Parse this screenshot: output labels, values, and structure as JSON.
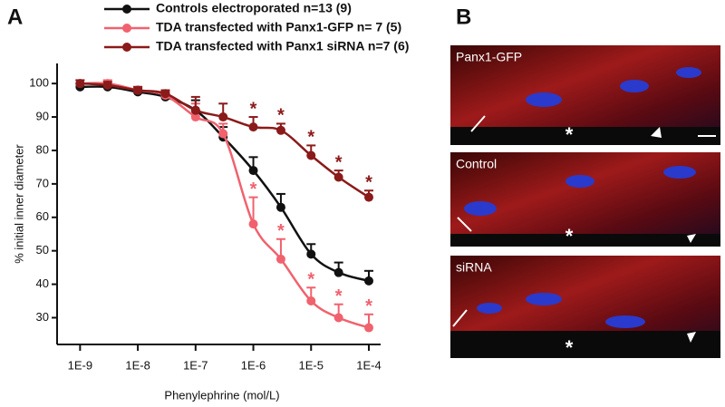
{
  "panel_a": {
    "letter": "A"
  },
  "panel_b": {
    "letter": "B",
    "images": [
      {
        "label": "Panx1-GFP",
        "marker": "*"
      },
      {
        "label": "Control",
        "marker": "*"
      },
      {
        "label": "siRNA",
        "marker": "*"
      }
    ]
  },
  "chart_data": {
    "type": "line",
    "log_x": true,
    "x_label": "Phenylephrine (mol/L)",
    "y_label": "% initial inner diameter",
    "x": [
      1e-09,
      3e-09,
      1e-08,
      3e-08,
      1e-07,
      3e-07,
      1e-06,
      3e-06,
      1e-05,
      3e-05,
      0.0001
    ],
    "xlim": [
      4e-10,
      0.00016
    ],
    "xticks": [
      {
        "value": 1e-09,
        "label": "1E-9"
      },
      {
        "value": 1e-08,
        "label": "1E-8"
      },
      {
        "value": 1e-07,
        "label": "1E-7"
      },
      {
        "value": 1e-06,
        "label": "1E-6"
      },
      {
        "value": 1e-05,
        "label": "1E-5"
      },
      {
        "value": 0.0001,
        "label": "1E-4"
      }
    ],
    "ylim": [
      22,
      106
    ],
    "yticks": [
      30,
      40,
      50,
      60,
      70,
      80,
      90,
      100
    ],
    "series": [
      {
        "name": "Controls electroporated n=13 (9)",
        "color": "#111111",
        "values": [
          99,
          99,
          97.5,
          96,
          92,
          84,
          74,
          63,
          49,
          43.5,
          41
        ],
        "errors": [
          1,
          1,
          1,
          1,
          3,
          3,
          4,
          4,
          3,
          3,
          3
        ],
        "marker_labels": [
          null,
          null,
          null,
          null,
          null,
          null,
          null,
          null,
          null,
          null,
          null
        ]
      },
      {
        "name": "TDA transfected with Panx1-GFP n= 7 (5)",
        "color": "#f0626e",
        "values": [
          100,
          100,
          98,
          96.5,
          90,
          85,
          58,
          47.5,
          35,
          30,
          27
        ],
        "errors": [
          1,
          1,
          1,
          1,
          4,
          3,
          8,
          6,
          4,
          4,
          4
        ],
        "marker_labels": [
          null,
          null,
          null,
          null,
          null,
          null,
          "*",
          "*",
          "*",
          "*",
          "*"
        ]
      },
      {
        "name": "TDA transfected with Panx1 siRNA n=7 (6)",
        "color": "#8b1a1a",
        "values": [
          100,
          99.5,
          98,
          97,
          92,
          90,
          87,
          86,
          78.5,
          72,
          66
        ],
        "errors": [
          1,
          1,
          1,
          1,
          4,
          4,
          3,
          2,
          3,
          2,
          2
        ],
        "marker_labels": [
          null,
          null,
          null,
          null,
          null,
          null,
          "*",
          "*",
          "*",
          "*",
          "*"
        ]
      }
    ]
  }
}
